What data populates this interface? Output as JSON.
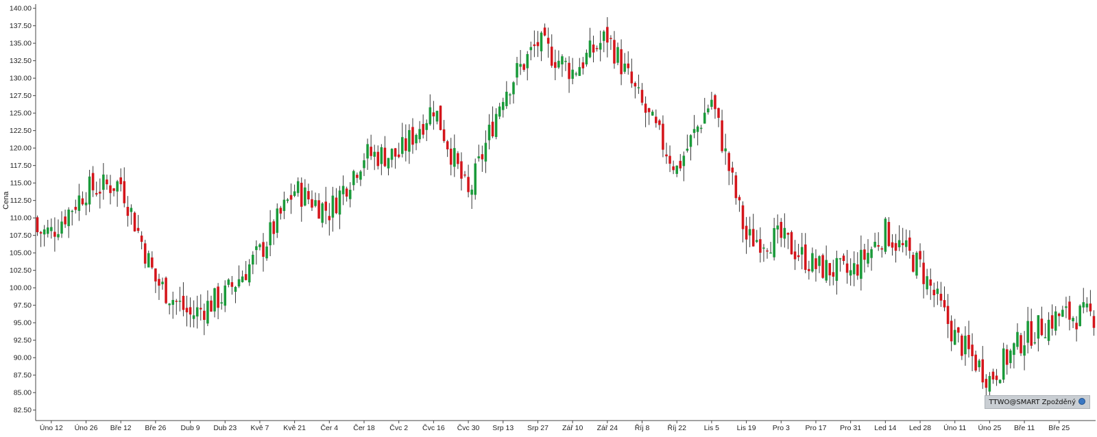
{
  "chart_data": {
    "type": "candlestick",
    "ylabel": "Cena",
    "ylim": [
      81.0,
      140.6
    ],
    "yticks": [
      "140.00",
      "137.50",
      "135.00",
      "132.50",
      "130.00",
      "127.50",
      "125.00",
      "122.50",
      "120.00",
      "117.50",
      "115.00",
      "112.50",
      "110.00",
      "107.50",
      "105.00",
      "102.50",
      "100.00",
      "97.50",
      "95.00",
      "92.50",
      "90.00",
      "87.50",
      "85.00",
      "82.50"
    ],
    "xticks": [
      "Úno 12",
      "Úno 26",
      "Bře 12",
      "Bře 26",
      "Dub 9",
      "Dub 23",
      "Kvě 7",
      "Kvě 21",
      "Čer 4",
      "Čer 18",
      "Čvc 2",
      "Čvc 16",
      "Čvc 30",
      "Srp 13",
      "Srp 27",
      "Zář 10",
      "Zář 24",
      "Říj 8",
      "Říj 22",
      "Lis 5",
      "Lis 19",
      "Pro 3",
      "Pro 17",
      "Pro 31",
      "Led 14",
      "Led 28",
      "Úno 11",
      "Úno 25",
      "Bře 11",
      "Bře 25"
    ],
    "colors": {
      "up": "#1a9a3a",
      "down": "#d4151b",
      "wick": "#333333"
    },
    "anchors": [
      {
        "label": "Úno 12",
        "close": 108
      },
      {
        "label": "Úno 26",
        "close": 114
      },
      {
        "label": "Bře 12",
        "close": 115
      },
      {
        "label": "Bře 26",
        "close": 101
      },
      {
        "label": "Dub 9",
        "close": 96
      },
      {
        "label": "Dub 23",
        "close": 99
      },
      {
        "label": "Kvě 7",
        "close": 105
      },
      {
        "label": "Kvě 21",
        "close": 114
      },
      {
        "label": "Čer 4",
        "close": 111
      },
      {
        "label": "Čer 18",
        "close": 119
      },
      {
        "label": "Čvc 2",
        "close": 119
      },
      {
        "label": "Čvc 16",
        "close": 126
      },
      {
        "label": "Čvc 30",
        "close": 113
      },
      {
        "label": "Srp 13",
        "close": 128
      },
      {
        "label": "Srp 27",
        "close": 135
      },
      {
        "label": "Zář 10",
        "close": 131
      },
      {
        "label": "Zář 24",
        "close": 136
      },
      {
        "label": "Říj 8",
        "close": 126
      },
      {
        "label": "Říj 22",
        "close": 117
      },
      {
        "label": "Lis 5",
        "close": 127
      },
      {
        "label": "Lis 19",
        "close": 107
      },
      {
        "label": "Pro 3",
        "close": 107
      },
      {
        "label": "Pro 17",
        "close": 103
      },
      {
        "label": "Pro 31",
        "close": 102
      },
      {
        "label": "Led 14",
        "close": 108
      },
      {
        "label": "Led 28",
        "close": 103
      },
      {
        "label": "Úno 11",
        "close": 93
      },
      {
        "label": "Úno 25",
        "close": 87
      },
      {
        "label": "Bře 11",
        "close": 93
      },
      {
        "label": "Bře 25",
        "close": 96
      }
    ],
    "grid": false
  },
  "badge": {
    "text": "TTWO@SMART Zpožděný"
  }
}
